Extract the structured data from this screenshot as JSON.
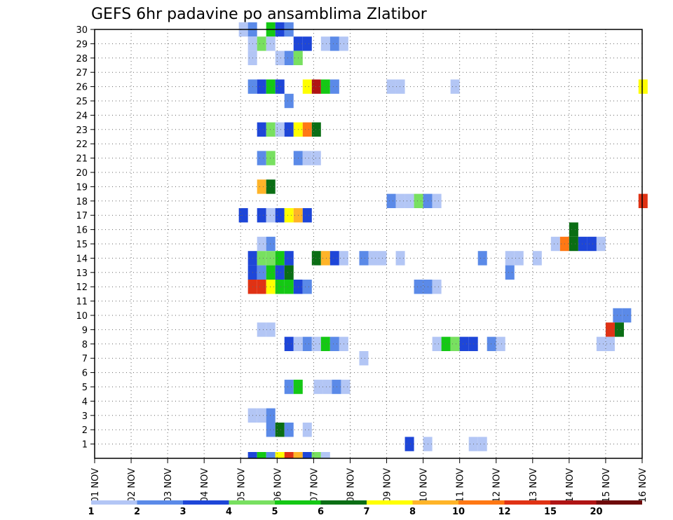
{
  "chart_data": {
    "type": "heatmap",
    "title": "GEFS 6hr padavine po ansamblima Zlatibor",
    "xlabel": "",
    "ylabel": "",
    "x_ticks": [
      "01 NOV",
      "02 NOV",
      "03 NOV",
      "04 NOV",
      "05 NOV",
      "06 NOV",
      "07 NOV",
      "08 NOV",
      "09 NOV",
      "10 NOV",
      "11 NOV",
      "12 NOV",
      "13 NOV",
      "14 NOV",
      "15 NOV",
      "16 NOV"
    ],
    "y_ticks": [
      "1",
      "2",
      "3",
      "4",
      "5",
      "6",
      "7",
      "8",
      "9",
      "10",
      "11",
      "12",
      "13",
      "14",
      "15",
      "16",
      "17",
      "18",
      "19",
      "20",
      "21",
      "22",
      "23",
      "24",
      "25",
      "26",
      "27",
      "28",
      "29",
      "30"
    ],
    "x_range_days": [
      1,
      16
    ],
    "y_range": [
      0,
      30
    ],
    "grid": true,
    "colorbar": {
      "labels": [
        "1",
        "2",
        "3",
        "4",
        "5",
        "6",
        "7",
        "8",
        "10",
        "12",
        "15",
        "20"
      ],
      "colors": [
        "#b3c6f5",
        "#5b8ae8",
        "#1e46d8",
        "#78e060",
        "#14c814",
        "#0a6e14",
        "#ffff00",
        "#ffb428",
        "#ff7814",
        "#e03214",
        "#b01414",
        "#6e0a0a"
      ]
    },
    "cells": [
      {
        "row": 30,
        "x": 4.95,
        "c": 1
      },
      {
        "row": 30,
        "x": 5.2,
        "c": 2
      },
      {
        "row": 30,
        "x": 5.7,
        "c": 5
      },
      {
        "row": 30,
        "x": 5.95,
        "c": 3
      },
      {
        "row": 30,
        "x": 6.2,
        "c": 2
      },
      {
        "row": 29,
        "x": 5.2,
        "c": 1
      },
      {
        "row": 29,
        "x": 5.45,
        "c": 4
      },
      {
        "row": 29,
        "x": 5.7,
        "c": 1
      },
      {
        "row": 29,
        "x": 6.45,
        "c": 3
      },
      {
        "row": 29,
        "x": 6.7,
        "c": 3
      },
      {
        "row": 29,
        "x": 7.2,
        "c": 1
      },
      {
        "row": 29,
        "x": 7.45,
        "c": 2
      },
      {
        "row": 29,
        "x": 7.7,
        "c": 1
      },
      {
        "row": 28,
        "x": 5.2,
        "c": 1
      },
      {
        "row": 28,
        "x": 5.95,
        "c": 1
      },
      {
        "row": 28,
        "x": 6.2,
        "c": 2
      },
      {
        "row": 28,
        "x": 6.45,
        "c": 4
      },
      {
        "row": 26,
        "x": 5.2,
        "c": 2
      },
      {
        "row": 26,
        "x": 5.45,
        "c": 3
      },
      {
        "row": 26,
        "x": 5.7,
        "c": 5
      },
      {
        "row": 26,
        "x": 5.95,
        "c": 3
      },
      {
        "row": 26,
        "x": 6.7,
        "c": 7
      },
      {
        "row": 26,
        "x": 6.95,
        "c": 11
      },
      {
        "row": 26,
        "x": 7.2,
        "c": 5
      },
      {
        "row": 26,
        "x": 7.45,
        "c": 2
      },
      {
        "row": 26,
        "x": 9.0,
        "c": 1
      },
      {
        "row": 26,
        "x": 9.25,
        "c": 1
      },
      {
        "row": 26,
        "x": 10.75,
        "c": 1
      },
      {
        "row": 26,
        "x": 15.9,
        "c": 7
      },
      {
        "row": 25,
        "x": 6.2,
        "c": 2
      },
      {
        "row": 23,
        "x": 5.45,
        "c": 3
      },
      {
        "row": 23,
        "x": 5.7,
        "c": 4
      },
      {
        "row": 23,
        "x": 5.95,
        "c": 1
      },
      {
        "row": 23,
        "x": 6.2,
        "c": 3
      },
      {
        "row": 23,
        "x": 6.45,
        "c": 7
      },
      {
        "row": 23,
        "x": 6.7,
        "c": 9
      },
      {
        "row": 23,
        "x": 6.95,
        "c": 6
      },
      {
        "row": 21,
        "x": 5.45,
        "c": 2
      },
      {
        "row": 21,
        "x": 5.7,
        "c": 4
      },
      {
        "row": 21,
        "x": 6.45,
        "c": 2
      },
      {
        "row": 21,
        "x": 6.7,
        "c": 1
      },
      {
        "row": 21,
        "x": 6.95,
        "c": 1
      },
      {
        "row": 19,
        "x": 5.45,
        "c": 8
      },
      {
        "row": 19,
        "x": 5.7,
        "c": 6
      },
      {
        "row": 18,
        "x": 9.0,
        "c": 2
      },
      {
        "row": 18,
        "x": 9.25,
        "c": 1
      },
      {
        "row": 18,
        "x": 9.5,
        "c": 1
      },
      {
        "row": 18,
        "x": 9.75,
        "c": 4
      },
      {
        "row": 18,
        "x": 10.0,
        "c": 2
      },
      {
        "row": 18,
        "x": 10.25,
        "c": 1
      },
      {
        "row": 18,
        "x": 15.9,
        "c": 10
      },
      {
        "row": 17,
        "x": 4.95,
        "c": 3
      },
      {
        "row": 17,
        "x": 5.45,
        "c": 3
      },
      {
        "row": 17,
        "x": 5.7,
        "c": 1
      },
      {
        "row": 17,
        "x": 5.95,
        "c": 3
      },
      {
        "row": 17,
        "x": 6.2,
        "c": 7
      },
      {
        "row": 17,
        "x": 6.45,
        "c": 8
      },
      {
        "row": 17,
        "x": 6.7,
        "c": 3
      },
      {
        "row": 16,
        "x": 14.0,
        "c": 6
      },
      {
        "row": 15,
        "x": 5.45,
        "c": 1
      },
      {
        "row": 15,
        "x": 5.7,
        "c": 2
      },
      {
        "row": 15,
        "x": 13.5,
        "c": 1
      },
      {
        "row": 15,
        "x": 13.75,
        "c": 9
      },
      {
        "row": 15,
        "x": 14.0,
        "c": 6
      },
      {
        "row": 15,
        "x": 14.25,
        "c": 3
      },
      {
        "row": 15,
        "x": 14.5,
        "c": 3
      },
      {
        "row": 15,
        "x": 14.75,
        "c": 1
      },
      {
        "row": 14,
        "x": 5.2,
        "c": 3
      },
      {
        "row": 14,
        "x": 5.45,
        "c": 4
      },
      {
        "row": 14,
        "x": 5.7,
        "c": 4
      },
      {
        "row": 14,
        "x": 5.95,
        "c": 5
      },
      {
        "row": 14,
        "x": 6.2,
        "c": 3
      },
      {
        "row": 14,
        "x": 6.95,
        "c": 6
      },
      {
        "row": 14,
        "x": 7.2,
        "c": 8
      },
      {
        "row": 14,
        "x": 7.45,
        "c": 3
      },
      {
        "row": 14,
        "x": 7.7,
        "c": 1
      },
      {
        "row": 14,
        "x": 8.25,
        "c": 2
      },
      {
        "row": 14,
        "x": 8.5,
        "c": 1
      },
      {
        "row": 14,
        "x": 8.75,
        "c": 1
      },
      {
        "row": 14,
        "x": 9.25,
        "c": 1
      },
      {
        "row": 14,
        "x": 11.5,
        "c": 2
      },
      {
        "row": 14,
        "x": 12.25,
        "c": 1
      },
      {
        "row": 14,
        "x": 12.5,
        "c": 1
      },
      {
        "row": 14,
        "x": 13.0,
        "c": 1
      },
      {
        "row": 13,
        "x": 5.2,
        "c": 3
      },
      {
        "row": 13,
        "x": 5.45,
        "c": 2
      },
      {
        "row": 13,
        "x": 5.7,
        "c": 5
      },
      {
        "row": 13,
        "x": 5.95,
        "c": 3
      },
      {
        "row": 13,
        "x": 6.2,
        "c": 6
      },
      {
        "row": 13,
        "x": 12.25,
        "c": 2
      },
      {
        "row": 12,
        "x": 5.2,
        "c": 10
      },
      {
        "row": 12,
        "x": 5.45,
        "c": 10
      },
      {
        "row": 12,
        "x": 5.7,
        "c": 7
      },
      {
        "row": 12,
        "x": 5.95,
        "c": 5
      },
      {
        "row": 12,
        "x": 6.2,
        "c": 5
      },
      {
        "row": 12,
        "x": 6.45,
        "c": 3
      },
      {
        "row": 12,
        "x": 6.7,
        "c": 2
      },
      {
        "row": 12,
        "x": 9.75,
        "c": 2
      },
      {
        "row": 12,
        "x": 10.0,
        "c": 2
      },
      {
        "row": 12,
        "x": 10.25,
        "c": 1
      },
      {
        "row": 10,
        "x": 15.2,
        "c": 2
      },
      {
        "row": 10,
        "x": 15.45,
        "c": 2
      },
      {
        "row": 9,
        "x": 5.45,
        "c": 1
      },
      {
        "row": 9,
        "x": 5.7,
        "c": 1
      },
      {
        "row": 9,
        "x": 15.0,
        "c": 10
      },
      {
        "row": 9,
        "x": 15.25,
        "c": 6
      },
      {
        "row": 8,
        "x": 6.2,
        "c": 3
      },
      {
        "row": 8,
        "x": 6.45,
        "c": 1
      },
      {
        "row": 8,
        "x": 6.7,
        "c": 2
      },
      {
        "row": 8,
        "x": 6.95,
        "c": 1
      },
      {
        "row": 8,
        "x": 7.2,
        "c": 5
      },
      {
        "row": 8,
        "x": 7.45,
        "c": 2
      },
      {
        "row": 8,
        "x": 7.7,
        "c": 1
      },
      {
        "row": 8,
        "x": 10.25,
        "c": 1
      },
      {
        "row": 8,
        "x": 10.5,
        "c": 5
      },
      {
        "row": 8,
        "x": 10.75,
        "c": 4
      },
      {
        "row": 8,
        "x": 11.0,
        "c": 3
      },
      {
        "row": 8,
        "x": 11.25,
        "c": 3
      },
      {
        "row": 8,
        "x": 11.75,
        "c": 2
      },
      {
        "row": 8,
        "x": 12.0,
        "c": 1
      },
      {
        "row": 8,
        "x": 14.75,
        "c": 1
      },
      {
        "row": 8,
        "x": 15.0,
        "c": 1
      },
      {
        "row": 7,
        "x": 8.25,
        "c": 1
      },
      {
        "row": 5,
        "x": 6.2,
        "c": 2
      },
      {
        "row": 5,
        "x": 6.45,
        "c": 5
      },
      {
        "row": 5,
        "x": 7.0,
        "c": 1
      },
      {
        "row": 5,
        "x": 7.25,
        "c": 1
      },
      {
        "row": 5,
        "x": 7.5,
        "c": 2
      },
      {
        "row": 5,
        "x": 7.75,
        "c": 1
      },
      {
        "row": 3,
        "x": 5.2,
        "c": 1
      },
      {
        "row": 3,
        "x": 5.45,
        "c": 1
      },
      {
        "row": 3,
        "x": 5.7,
        "c": 2
      },
      {
        "row": 2,
        "x": 5.7,
        "c": 2
      },
      {
        "row": 2,
        "x": 5.95,
        "c": 6
      },
      {
        "row": 2,
        "x": 6.2,
        "c": 2
      },
      {
        "row": 2,
        "x": 6.7,
        "c": 1
      },
      {
        "row": 1,
        "x": 9.5,
        "c": 3
      },
      {
        "row": 1,
        "x": 10.0,
        "c": 1
      },
      {
        "row": 1,
        "x": 11.25,
        "c": 1
      },
      {
        "row": 1,
        "x": 11.5,
        "c": 1
      }
    ],
    "bottom_strip": [
      {
        "x": 5.2,
        "c": 3
      },
      {
        "x": 5.45,
        "c": 5
      },
      {
        "x": 5.7,
        "c": 2
      },
      {
        "x": 5.95,
        "c": 7
      },
      {
        "x": 6.2,
        "c": 10
      },
      {
        "x": 6.45,
        "c": 8
      },
      {
        "x": 6.7,
        "c": 3
      },
      {
        "x": 6.95,
        "c": 4
      },
      {
        "x": 7.2,
        "c": 1
      }
    ]
  }
}
